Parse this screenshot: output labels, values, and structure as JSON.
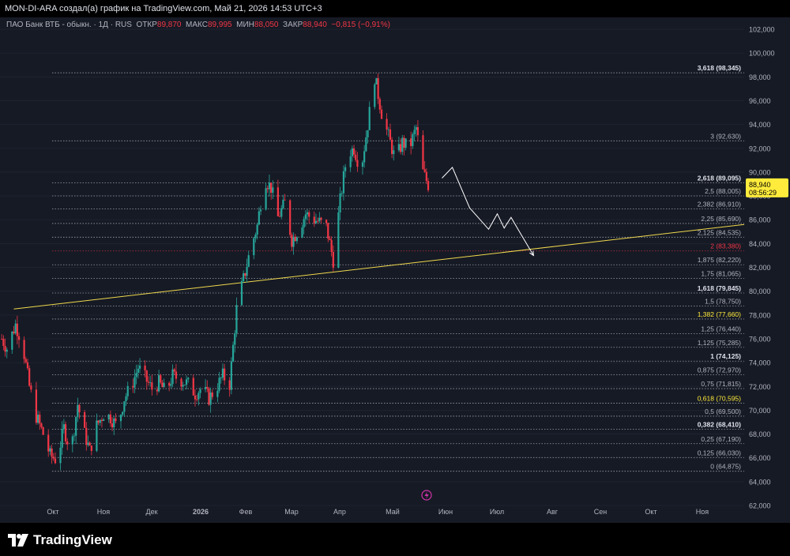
{
  "header": {
    "title": "MON-DI-ARA создал(а) график на TradingView.com, Май 21, 2026 14:53 UTC+3"
  },
  "legend": {
    "symbol": "ПАО Банк ВТБ - обыкн. · 1Д · RUS",
    "open_label": "ОТКР",
    "open_value": "89,870",
    "high_label": "МАКС",
    "high_value": "89,995",
    "low_label": "МИН",
    "low_value": "88,050",
    "close_label": "ЗАКР",
    "close_value": "88,940",
    "change": "−0,815 (−0,91%)"
  },
  "price_badge": {
    "price": "88,940",
    "countdown": "08:56:29",
    "color": "#ffeb3b"
  },
  "footer": {
    "brand": "TradingView"
  },
  "colors": {
    "up": "#26a69a",
    "down": "#f23645",
    "background": "#161a25",
    "trendline": "#f0d94e",
    "projection": "#ffffff"
  },
  "chart_data": {
    "type": "candlestick",
    "y_axis": {
      "ylim": [
        62,
        103
      ],
      "ticks": [
        "102,000",
        "100,000",
        "98,000",
        "96,000",
        "94,000",
        "92,000",
        "90,000",
        "88,000",
        "86,000",
        "84,000",
        "82,000",
        "80,000",
        "78,000",
        "76,000",
        "74,000",
        "72,000",
        "70,000",
        "68,000",
        "66,000",
        "64,000",
        "62,000"
      ],
      "tick_values": [
        102,
        100,
        98,
        96,
        94,
        92,
        90,
        88,
        86,
        84,
        82,
        80,
        78,
        76,
        74,
        72,
        70,
        68,
        66,
        64,
        62
      ]
    },
    "x_axis": {
      "labels": [
        "Окт",
        "Ноя",
        "Дек",
        "2026",
        "Фев",
        "Мар",
        "Апр",
        "Май",
        "Июн",
        "Июл",
        "Авг",
        "Сен",
        "Окт",
        "Ноя"
      ],
      "start": "2025-09-15",
      "end": "2026-11-20"
    },
    "fib_levels": [
      {
        "label": "3,618 (98,345)",
        "value": 98.345,
        "style": "bold"
      },
      {
        "label": "3 (92,630)",
        "value": 92.63,
        "style": "normal"
      },
      {
        "label": "2,618 (89,095)",
        "value": 89.095,
        "style": "bold"
      },
      {
        "label": "2,5 (88,005)",
        "value": 88.005,
        "style": "normal"
      },
      {
        "label": "2,382 (86,910)",
        "value": 86.91,
        "style": "normal"
      },
      {
        "label": "2,25 (85,690)",
        "value": 85.69,
        "style": "normal"
      },
      {
        "label": "2,125 (84,535)",
        "value": 84.535,
        "style": "normal"
      },
      {
        "label": "2 (83,380)",
        "value": 83.38,
        "style": "red"
      },
      {
        "label": "1,875 (82,220)",
        "value": 82.22,
        "style": "normal"
      },
      {
        "label": "1,75 (81,065)",
        "value": 81.065,
        "style": "normal"
      },
      {
        "label": "1,618 (79,845)",
        "value": 79.845,
        "style": "bold"
      },
      {
        "label": "1,5 (78,750)",
        "value": 78.75,
        "style": "normal"
      },
      {
        "label": "1,382 (77,660)",
        "value": 77.66,
        "style": "yellow"
      },
      {
        "label": "1,25 (76,440)",
        "value": 76.44,
        "style": "normal"
      },
      {
        "label": "1,125 (75,285)",
        "value": 75.285,
        "style": "normal"
      },
      {
        "label": "1 (74,125)",
        "value": 74.125,
        "style": "bold"
      },
      {
        "label": "0,875 (72,970)",
        "value": 72.97,
        "style": "normal"
      },
      {
        "label": "0,75 (71,815)",
        "value": 71.815,
        "style": "normal"
      },
      {
        "label": "0,618 (70,595)",
        "value": 70.595,
        "style": "yellow"
      },
      {
        "label": "0,5 (69,500)",
        "value": 69.5,
        "style": "normal"
      },
      {
        "label": "0,382 (68,410)",
        "value": 68.41,
        "style": "bold"
      },
      {
        "label": "0,25 (67,190)",
        "value": 67.19,
        "style": "normal"
      },
      {
        "label": "0,125 (66,030)",
        "value": 66.03,
        "style": "normal"
      },
      {
        "label": "0 (64,875)",
        "value": 64.875,
        "style": "normal"
      }
    ],
    "price_path": [
      [
        "2025-09-16",
        76.0
      ],
      [
        "2025-09-19",
        75.2
      ],
      [
        "2025-09-24",
        77.2
      ],
      [
        "2025-09-28",
        75.6
      ],
      [
        "2025-10-02",
        72.0
      ],
      [
        "2025-10-06",
        69.5
      ],
      [
        "2025-10-10",
        68.0
      ],
      [
        "2025-10-14",
        66.2
      ],
      [
        "2025-10-18",
        65.8
      ],
      [
        "2025-10-22",
        68.5
      ],
      [
        "2025-10-26",
        66.5
      ],
      [
        "2025-10-30",
        70.5
      ],
      [
        "2025-11-03",
        68.0
      ],
      [
        "2025-11-06",
        66.6
      ],
      [
        "2025-11-10",
        68.7
      ],
      [
        "2025-11-14",
        69.7
      ],
      [
        "2025-11-18",
        69.4
      ],
      [
        "2025-11-22",
        68.6
      ],
      [
        "2025-11-26",
        71.0
      ],
      [
        "2025-11-30",
        72.0
      ],
      [
        "2025-12-04",
        73.6
      ],
      [
        "2025-12-08",
        72.7
      ],
      [
        "2025-12-12",
        71.8
      ],
      [
        "2025-12-16",
        72.3
      ],
      [
        "2025-12-20",
        71.5
      ],
      [
        "2025-12-24",
        72.9
      ],
      [
        "2025-12-28",
        72.6
      ],
      [
        "2026-01-02",
        72.2
      ],
      [
        "2026-01-06",
        71.4
      ],
      [
        "2026-01-10",
        71.9
      ],
      [
        "2026-01-14",
        71.0
      ],
      [
        "2026-01-18",
        71.8
      ],
      [
        "2026-01-22",
        72.9
      ],
      [
        "2026-01-26",
        72.2
      ],
      [
        "2026-01-30",
        78.5
      ],
      [
        "2026-02-03",
        81.0
      ],
      [
        "2026-02-07",
        83.5
      ],
      [
        "2026-02-11",
        85.5
      ],
      [
        "2026-02-15",
        89.5
      ],
      [
        "2026-02-19",
        88.7
      ],
      [
        "2026-02-23",
        86.2
      ],
      [
        "2026-02-27",
        87.4
      ],
      [
        "2026-03-03",
        84.3
      ],
      [
        "2026-03-07",
        85.2
      ],
      [
        "2026-03-11",
        86.5
      ],
      [
        "2026-03-15",
        86.1
      ],
      [
        "2026-03-19",
        85.8
      ],
      [
        "2026-03-23",
        85.4
      ],
      [
        "2026-03-27",
        82.6
      ],
      [
        "2026-03-31",
        87.6
      ],
      [
        "2026-04-04",
        91.5
      ],
      [
        "2026-04-08",
        92.0
      ],
      [
        "2026-04-12",
        90.2
      ],
      [
        "2026-04-16",
        94.0
      ],
      [
        "2026-04-20",
        98.0
      ],
      [
        "2026-04-24",
        95.0
      ],
      [
        "2026-04-28",
        93.0
      ],
      [
        "2026-05-02",
        91.0
      ],
      [
        "2026-05-06",
        92.5
      ],
      [
        "2026-05-10",
        92.0
      ],
      [
        "2026-05-14",
        93.7
      ],
      [
        "2026-05-18",
        90.0
      ],
      [
        "2026-05-21",
        88.94
      ]
    ],
    "trendline": {
      "start": [
        "2025-09-23",
        78.5
      ],
      "end": [
        "2026-11-20",
        85.6
      ]
    },
    "projection": [
      [
        "2026-05-29",
        89.5
      ],
      [
        "2026-06-04",
        90.4
      ],
      [
        "2026-06-14",
        87.0
      ],
      [
        "2026-06-25",
        85.2
      ],
      [
        "2026-06-30",
        86.5
      ],
      [
        "2026-07-04",
        85.3
      ],
      [
        "2026-07-08",
        86.2
      ],
      [
        "2026-07-14",
        84.7
      ],
      [
        "2026-07-21",
        83.0
      ]
    ]
  }
}
